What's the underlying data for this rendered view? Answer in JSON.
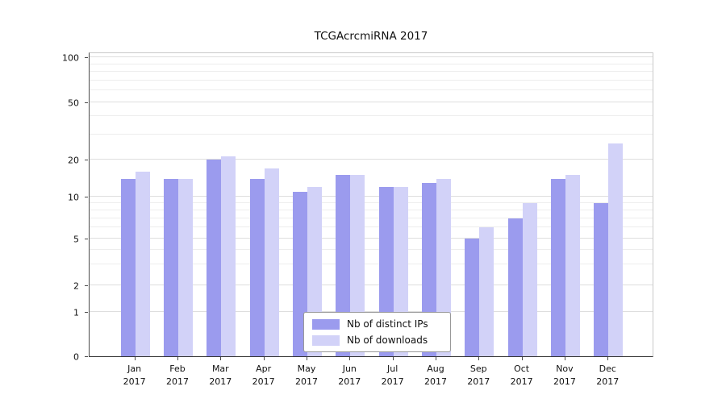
{
  "figure": {
    "title": "TCGAcrcmiRNA 2017"
  },
  "chart_data": {
    "type": "bar",
    "title": "TCGAcrcmiRNA 2017",
    "categories": [
      "Jan 2017",
      "Feb 2017",
      "Mar 2017",
      "Apr 2017",
      "May 2017",
      "Jun 2017",
      "Jul 2017",
      "Aug 2017",
      "Sep 2017",
      "Oct 2017",
      "Nov 2017",
      "Dec 2017"
    ],
    "series": [
      {
        "name": "Nb of distinct IPs",
        "color": "#9b9bee",
        "values": [
          14,
          14,
          20,
          14,
          11,
          15,
          12,
          13,
          5,
          7,
          14,
          9
        ]
      },
      {
        "name": "Nb of downloads",
        "color": "#d2d2f8",
        "values": [
          16,
          14,
          21,
          17,
          12,
          15,
          12,
          14,
          6,
          9,
          15,
          26
        ]
      }
    ],
    "xlabel": "",
    "ylabel": "",
    "yscale": "symlog",
    "ylim": [
      0,
      110
    ],
    "yticks": [
      0,
      1,
      2,
      5,
      10,
      20,
      50,
      100
    ],
    "minor_yticks": [
      3,
      4,
      6,
      7,
      8,
      9,
      30,
      40,
      60,
      70,
      80,
      90
    ],
    "grid": true,
    "legend_position": "lower center"
  }
}
